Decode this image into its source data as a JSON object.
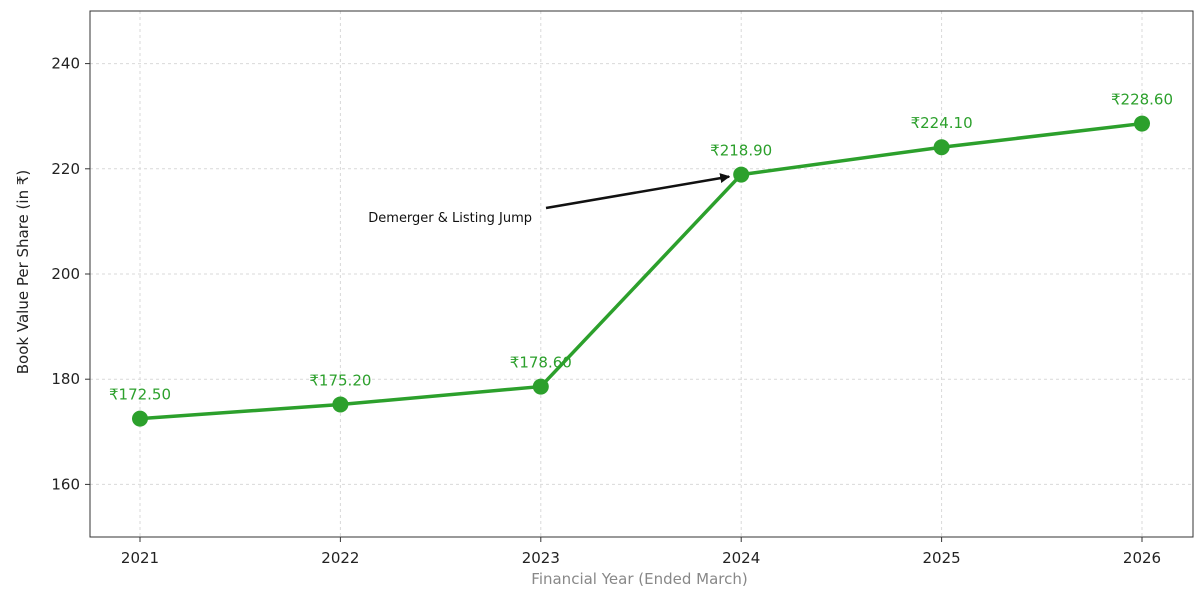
{
  "chart_data": {
    "type": "line",
    "title": "",
    "xlabel": "Financial Year (Ended March)",
    "ylabel": "Book Value Per Share (in ₹)",
    "x": [
      "2021",
      "2022",
      "2023",
      "2024",
      "2025",
      "2026"
    ],
    "series": [
      {
        "values": [
          172.5,
          175.2,
          178.6,
          218.9,
          224.1,
          228.6
        ],
        "labels": [
          "₹172.50",
          "₹175.20",
          "₹178.60",
          "₹218.90",
          "₹224.10",
          "₹228.60"
        ],
        "color": "#2ca02c",
        "marker": "circle"
      }
    ],
    "ylim": [
      150,
      250
    ],
    "yticks": [
      160,
      180,
      200,
      220,
      240
    ],
    "grid": true,
    "annotations": [
      {
        "text": "Demerger & Listing Jump",
        "target_x": "2024",
        "target_y": 218.9,
        "arrow": true
      }
    ],
    "colors": {
      "line": "#2ca02c",
      "xlabel": "#888888",
      "ylabel": "#222222",
      "grid": "#d9d9d9",
      "frame": "#333333"
    }
  }
}
